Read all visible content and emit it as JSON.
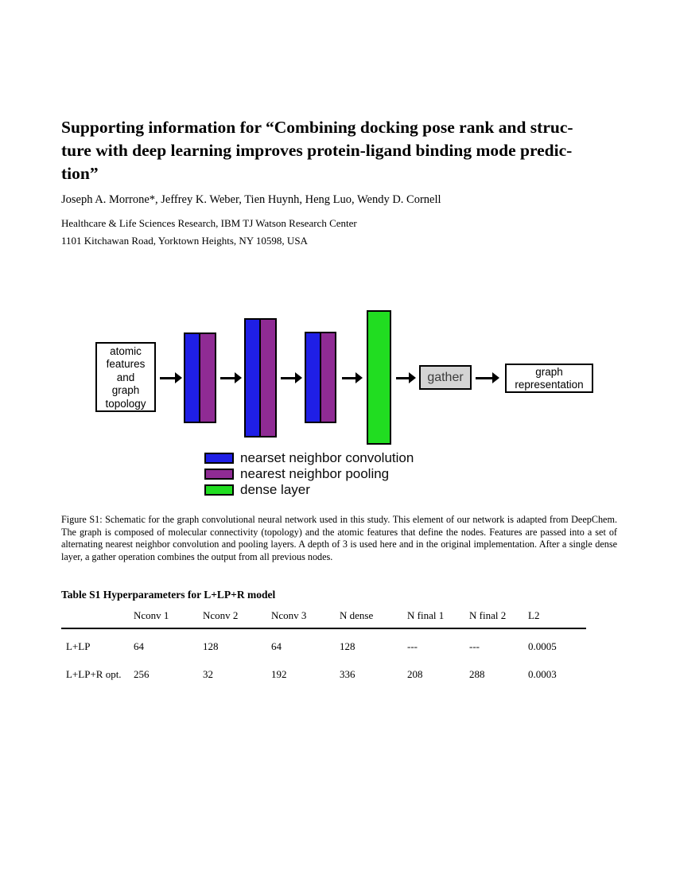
{
  "header": {
    "title_lines": [
      "Supporting information for “Combining docking pose rank and struc-",
      "ture with deep learning improves protein-ligand binding mode predic-",
      "tion”"
    ],
    "authors": "Joseph A. Morrone*, Jeffrey K. Weber, Tien Huynh, Heng Luo, Wendy D. Cornell",
    "affiliation_line1": "Healthcare & Life Sciences Research, IBM TJ Watson Research Center",
    "affiliation_line2": "1101 Kitchawan Road, Yorktown Heights, NY 10598, USA"
  },
  "figure": {
    "input_box_lines": [
      "atomic",
      "features",
      "and",
      "graph",
      "topology"
    ],
    "gather_label": "gather",
    "output_box_lines": [
      "graph",
      "representation"
    ],
    "legend": [
      {
        "swatch": "blue-swatch",
        "label": "nearset neighbor convolution",
        "color": "#1f1fe6"
      },
      {
        "swatch": "purple-swatch",
        "label": "nearest neighbor pooling",
        "color": "#8f2b94"
      },
      {
        "swatch": "green-swatch",
        "label": "dense layer",
        "color": "#21dd21"
      }
    ],
    "caption": "Figure S1: Schematic for the graph convolutional neural network used in this study.  This element of our network is adapted from DeepChem. The graph is composed of molecular connectivity (topology) and the atomic features that define the nodes.  Features are passed into a set of alternating nearest neighbor convolution and pooling layers.  A depth of 3 is used here and in the original implementation.  After a single dense layer, a gather operation combines the output from all previous nodes."
  },
  "table": {
    "title": "Table S1 Hyperparameters for L+LP+R model",
    "headers": [
      "Nconv 1",
      "Nconv 2",
      "Nconv 3",
      "N dense",
      "N final 1",
      "N final 2",
      "L2"
    ],
    "rows": [
      {
        "label": "L+LP",
        "values": [
          "64",
          "128",
          "64",
          "128",
          "---",
          "---",
          "0.0005"
        ]
      },
      {
        "label": "L+LP+R opt.",
        "values": [
          "256",
          "32",
          "192",
          "336",
          "208",
          "288",
          "0.0003"
        ]
      }
    ]
  },
  "colors": {
    "convolution_blue": "#1f1fe6",
    "pooling_purple": "#8f2b94",
    "dense_green": "#21dd21",
    "gather_gray": "#d4d4d4"
  }
}
